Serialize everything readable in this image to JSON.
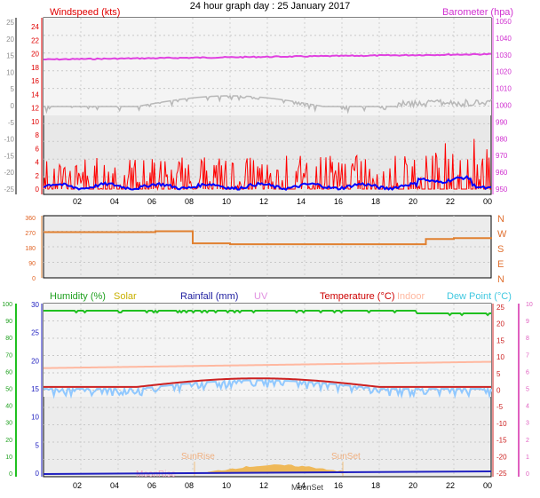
{
  "title": "24 hour graph day : 25 January 2017",
  "x_ticks": [
    "02",
    "04",
    "06",
    "08",
    "10",
    "12",
    "14",
    "16",
    "18",
    "20",
    "22",
    "00"
  ],
  "panels": {
    "wind": {
      "label_wind": "Windspeed (kts)",
      "label_baro": "Barometer (hpa)",
      "left_ticks_red": [
        "24",
        "22",
        "20",
        "18",
        "16",
        "14",
        "12",
        "10",
        "8",
        "6",
        "4",
        "2",
        "0"
      ],
      "left_ticks_gray": [
        "25",
        "20",
        "15",
        "10",
        "5",
        "0",
        "-5",
        "-10",
        "-15",
        "-20",
        "-25"
      ],
      "right_ticks_pink": [
        "1050",
        "1040",
        "1030",
        "1020",
        "1010",
        "1000",
        "990",
        "980",
        "970",
        "960",
        "950"
      ]
    },
    "dir": {
      "left_ticks": [
        "360",
        "270",
        "180",
        "90",
        "0"
      ],
      "right_compass": [
        "N",
        "W",
        "S",
        "E",
        "N"
      ]
    },
    "temp": {
      "label_humidity": "Humidity (%)",
      "label_solar": "Solar",
      "label_rain": "Rainfall (mm)",
      "label_uv": "UV",
      "label_temp": "Temperature (°C)",
      "label_indoor": "Indoor",
      "label_dew": "Dew Point (°C)",
      "humidity_ticks": [
        "100",
        "90",
        "80",
        "70",
        "60",
        "50",
        "40",
        "30",
        "20",
        "10",
        "0"
      ],
      "rain_ticks": [
        "30",
        "25",
        "20",
        "15",
        "10",
        "5",
        "0"
      ],
      "temp_ticks": [
        "25",
        "20",
        "15",
        "10",
        "5",
        "0",
        "-5",
        "-10",
        "-15",
        "-20",
        "-25"
      ],
      "uv_ticks": [
        "10",
        "9",
        "8",
        "7",
        "6",
        "5",
        "4",
        "3",
        "2",
        "1",
        "0"
      ],
      "sunrise": "SunRise",
      "sunset": "SunSet",
      "moonrise": "MoonRise",
      "moonset": "MoonSet"
    }
  },
  "colors": {
    "wind": "#ff0000",
    "gust_avg": "#0000ff",
    "baro": "#e040e0",
    "gray": "#b8b8b8",
    "dir": "#e08030",
    "humidity": "#20c020",
    "temp": "#cc2020",
    "dew": "#80c0ff",
    "indoor": "#ffb8a0",
    "solar": "#f0b040",
    "rain": "#2020c0",
    "uv": "#e060c0"
  },
  "chart_data": [
    {
      "type": "line",
      "x": [
        0,
        2,
        4,
        6,
        8,
        10,
        12,
        14,
        16,
        18,
        20,
        22,
        24
      ],
      "series": [
        {
          "name": "Windspeed (kts)",
          "values": [
            1,
            1,
            1,
            1,
            1,
            1,
            1,
            1,
            2,
            2,
            2,
            2,
            2
          ]
        },
        {
          "name": "Barometer (hpa)",
          "values": [
            1029,
            1029,
            1029,
            1029,
            1029,
            1029,
            1030,
            1030,
            1030,
            1030,
            1030,
            1031,
            1031
          ]
        }
      ],
      "ylim_wind": [
        0,
        25
      ],
      "ylim_baro": [
        950,
        1050
      ]
    },
    {
      "type": "line",
      "x": [
        0,
        2,
        4,
        6,
        7.8,
        8,
        10,
        12,
        14,
        16,
        18,
        20,
        20.5,
        22,
        24
      ],
      "series": [
        {
          "values": [
            265,
            265,
            265,
            270,
            270,
            200,
            195,
            195,
            195,
            195,
            195,
            195,
            225,
            230,
            225
          ]
        }
      ],
      "ylim": [
        0,
        360
      ]
    },
    {
      "type": "line",
      "x": [
        0,
        2,
        4,
        6,
        8,
        10,
        12,
        14,
        16,
        18,
        20,
        22,
        24
      ],
      "series": [
        {
          "name": "Humidity (%)",
          "values": [
            96,
            96,
            96,
            96,
            96,
            96,
            96,
            96,
            96,
            96,
            95,
            95,
            95
          ]
        },
        {
          "name": "Temperature (°C)",
          "values": [
            0,
            0.5,
            0.5,
            0,
            1,
            2,
            2.5,
            3,
            3,
            2.5,
            2,
            1.5,
            1.5
          ]
        },
        {
          "name": "Dew Point (°C)",
          "values": [
            -0.5,
            0,
            0,
            -0.5,
            0.5,
            1.5,
            2,
            2.5,
            2.5,
            2,
            1.5,
            1,
            1
          ]
        },
        {
          "name": "Indoor",
          "values": [
            6,
            6,
            6,
            6,
            6.5,
            7,
            7,
            7,
            7,
            7.5,
            7.5,
            8,
            8
          ]
        }
      ],
      "ylim_humidity": [
        0,
        100
      ],
      "ylim_temp": [
        -25,
        25
      ]
    }
  ]
}
